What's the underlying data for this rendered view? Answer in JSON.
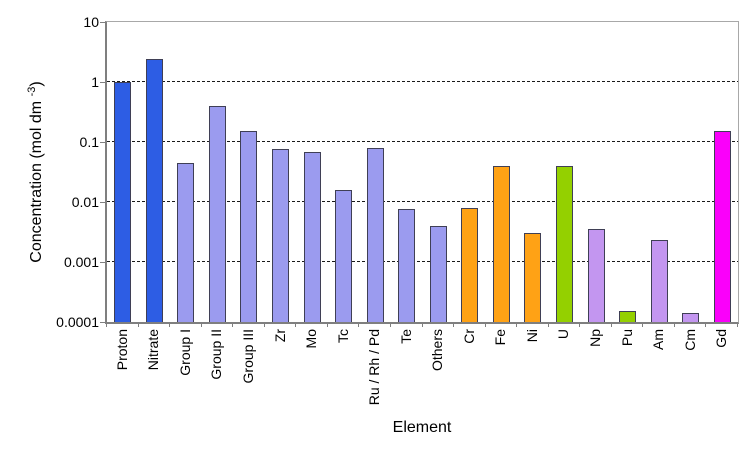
{
  "chart_data": {
    "type": "bar",
    "title": "",
    "xlabel": "Element",
    "ylabel_parts": {
      "prefix": "Concentration (mol dm ",
      "sup": "-3",
      "suffix": ")"
    },
    "y_scale": "log10",
    "ylim": [
      0.0001,
      10
    ],
    "y_ticks": [
      "10",
      "1",
      "0.1",
      "0.01",
      "0.001",
      "0.0001"
    ],
    "grid": "horizontal dashed lines at 1, 0.1, 0.01, 0.001",
    "legend": "none",
    "categories": [
      "Proton",
      "Nitrate",
      "Group I",
      "Group II",
      "Group III",
      "Zr",
      "Mo",
      "Tc",
      "Ru / Rh / Pd",
      "Te",
      "Others",
      "Cr",
      "Fe",
      "Ni",
      "U",
      "Np",
      "Pu",
      "Am",
      "Cm",
      "Gd"
    ],
    "values": [
      1.0,
      2.4,
      0.045,
      0.4,
      0.15,
      0.075,
      0.068,
      0.016,
      0.08,
      0.0075,
      0.004,
      0.008,
      0.04,
      0.003,
      0.04,
      0.0036,
      0.00015,
      0.0023,
      0.00014,
      0.15
    ],
    "bar_color_keys": [
      "blue",
      "blue",
      "periwinkle",
      "periwinkle",
      "periwinkle",
      "periwinkle",
      "periwinkle",
      "periwinkle",
      "periwinkle",
      "periwinkle",
      "periwinkle",
      "orange",
      "orange",
      "orange",
      "green",
      "lilac",
      "green",
      "lilac",
      "lilac",
      "magenta"
    ],
    "palette": {
      "blue": "#2d5de4",
      "periwinkle": "#9b9bef",
      "orange": "#ffa215",
      "green": "#94d000",
      "lilac": "#c396f0",
      "magenta": "#fa00fa"
    },
    "bar_border_color": "#3f3f55",
    "axis_color": "#7f7f7f",
    "gridline_color": "#1a1a1a",
    "background_color": "#ffffff"
  }
}
